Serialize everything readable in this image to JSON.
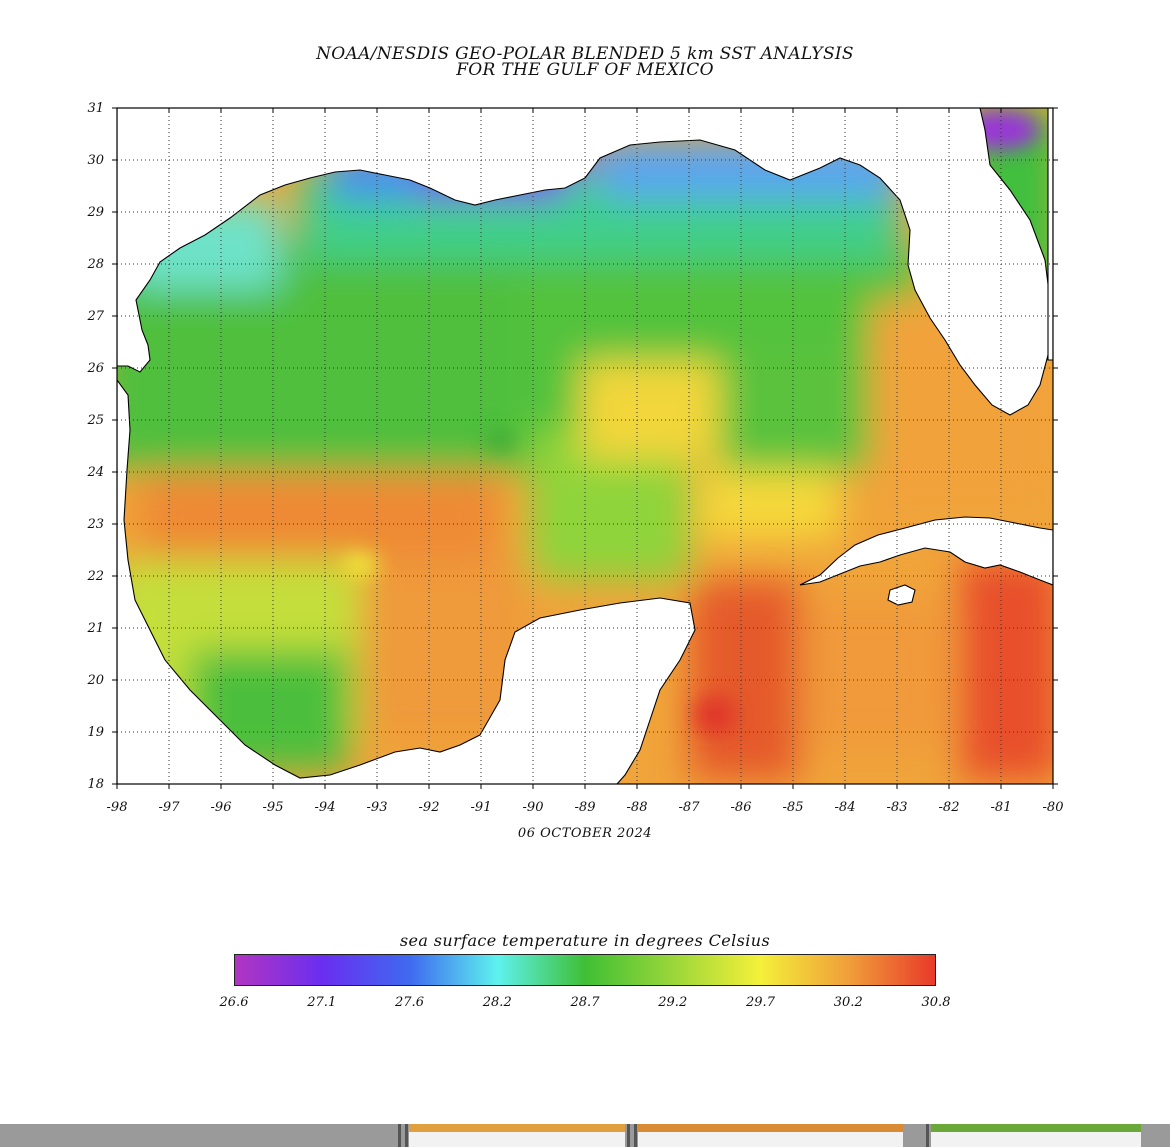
{
  "title": {
    "line1": "NOAA/NESDIS GEO-POLAR BLENDED 5 km SST ANALYSIS",
    "line2": "FOR THE GULF OF MEXICO"
  },
  "date": "06 OCTOBER 2024",
  "map": {
    "lon_range": [
      -98,
      -80
    ],
    "lat_range": [
      18,
      31
    ],
    "lon_ticks": [
      "-98",
      "-97",
      "-96",
      "-95",
      "-94",
      "-93",
      "-92",
      "-91",
      "-90",
      "-89",
      "-88",
      "-87",
      "-86",
      "-85",
      "-84",
      "-83",
      "-82",
      "-81",
      "-80"
    ],
    "lat_ticks": [
      "18",
      "19",
      "20",
      "21",
      "22",
      "23",
      "24",
      "25",
      "26",
      "27",
      "28",
      "29",
      "30",
      "31"
    ],
    "grid": "dotted",
    "land_color": "#ffffff",
    "coast_color": "#000000"
  },
  "colorbar": {
    "title": "sea surface temperature in degrees Celsius",
    "tick_labels": [
      "26.6",
      "27.1",
      "27.6",
      "28.2",
      "28.7",
      "29.2",
      "29.7",
      "30.2",
      "30.8"
    ],
    "colors": [
      "#b235c2",
      "#6a2ef0",
      "#3f6af0",
      "#5ef2ee",
      "#3fbf35",
      "#9ad63a",
      "#f4f03a",
      "#f0a03a",
      "#e83a2a"
    ]
  }
}
